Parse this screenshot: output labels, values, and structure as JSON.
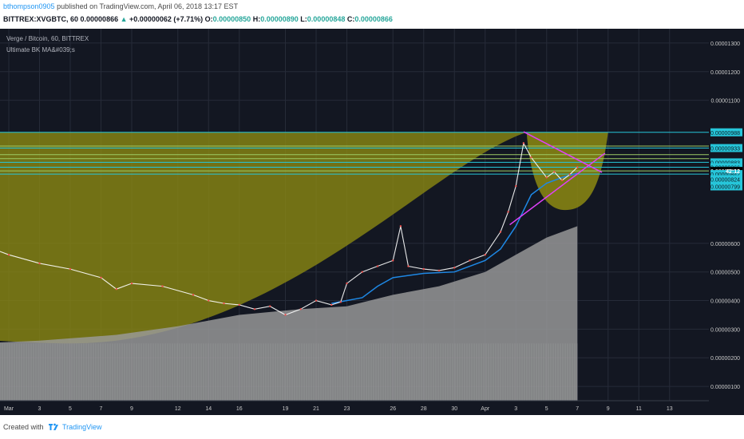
{
  "header": {
    "user": "bthompson0905",
    "published": "published on TradingView.com, April 06, 2018 13:17 EST",
    "symbol": "BITTREX:XVGBTC, 60",
    "last": "0.00000866",
    "change_arrow": "▲",
    "change": "+0.00000062 (+7.71%)",
    "o_label": "O:",
    "o_value": "0.00000850",
    "h_label": "H:",
    "h_value": "0.00000890",
    "l_label": "L:",
    "l_value": "0.00000848",
    "c_label": "C:",
    "c_value": "0.00000866"
  },
  "legend": {
    "title": "Verge / Bitcoin, 60, BITTREX",
    "indicator": "Ultimate BK MA&#039;s"
  },
  "footer": {
    "created_with": "Created with",
    "brand": "TradingView"
  },
  "colors": {
    "background": "#131722",
    "bowl_fill": "#8d8a12",
    "volume": "#9b9b9b",
    "cyan_line": "#26c6da",
    "green_line": "#9ccc65",
    "magenta_line": "#e040fb",
    "ma_line": "#1e88e5",
    "price_line": "#ffffff",
    "axis_text": "#c8c8c8"
  },
  "chart_data": {
    "type": "line",
    "title": "Verge / Bitcoin, 60, BITTREX",
    "xlabel": "",
    "ylabel": "",
    "ylim": [
      5e-07,
      1.35e-05
    ],
    "grid": true,
    "y_ticks": [
      {
        "value": 1.3e-05,
        "label": "0.00001300"
      },
      {
        "value": 1.2e-05,
        "label": "0.00001200"
      },
      {
        "value": 1.1e-05,
        "label": "0.00001100"
      },
      {
        "value": 6e-06,
        "label": "0.00000600"
      },
      {
        "value": 5e-06,
        "label": "0.00000500"
      },
      {
        "value": 4e-06,
        "label": "0.00000400"
      },
      {
        "value": 3e-06,
        "label": "0.00000300"
      },
      {
        "value": 2e-06,
        "label": "0.00000200"
      },
      {
        "value": 1e-06,
        "label": "0.00000100"
      }
    ],
    "x_ticks": [
      "Mar",
      "3",
      "5",
      "7",
      "9",
      "12",
      "14",
      "16",
      "19",
      "21",
      "23",
      "26",
      "28",
      "30",
      "Apr",
      "3",
      "5",
      "7",
      "9",
      "11",
      "13"
    ],
    "x_tick_days": [
      1,
      3,
      5,
      7,
      9,
      12,
      14,
      16,
      19,
      21,
      23,
      26,
      28,
      30,
      32,
      34,
      36,
      38,
      40,
      42,
      44
    ],
    "price_labels": [
      {
        "value": 9.88e-06,
        "label": "0.00000988",
        "style": "cyan"
      },
      {
        "value": 9.33e-06,
        "label": "0.00000933",
        "style": "cyan"
      },
      {
        "value": 8.83e-06,
        "label": "0.00000883",
        "style": "cyan"
      },
      {
        "value": 8.66e-06,
        "label": "0.00000866",
        "style": "cyan"
      },
      {
        "value": 8.53e-06,
        "label": "0.00000853",
        "style": "dark"
      },
      {
        "value": 8.42e-06,
        "label": "0.00000842",
        "style": "cyan"
      },
      {
        "value": 8.24e-06,
        "label": "0.00000824",
        "style": "cyan"
      },
      {
        "value": 7.99e-06,
        "label": "0.00000799",
        "style": "cyan"
      }
    ],
    "current_label": {
      "value": 8.53e-06,
      "label": "42:12"
    },
    "horizontal_levels": [
      {
        "value": 9.88e-06,
        "color": "cyan"
      },
      {
        "value": 9.4e-06,
        "color": "green"
      },
      {
        "value": 9.33e-06,
        "color": "cyan"
      },
      {
        "value": 9.1e-06,
        "color": "green"
      },
      {
        "value": 8.96e-06,
        "color": "green"
      },
      {
        "value": 8.83e-06,
        "color": "cyan"
      },
      {
        "value": 8.66e-06,
        "color": "cyan"
      },
      {
        "value": 8.53e-06,
        "color": "green"
      },
      {
        "value": 8.42e-06,
        "color": "cyan"
      }
    ],
    "series": [
      {
        "kind": "price",
        "x": [
          -1,
          1,
          3,
          5,
          7,
          8,
          9,
          11,
          13,
          14,
          15,
          16,
          17,
          18,
          19,
          20,
          21,
          22,
          22.6,
          23,
          24,
          25,
          26,
          26.5,
          27,
          28,
          29,
          30,
          31,
          32,
          33,
          33.5,
          34,
          34.5,
          35,
          36,
          36.5,
          37,
          37.5,
          38
        ],
        "values": [
          6e-06,
          5.6e-06,
          5.3e-06,
          5.1e-06,
          4.8e-06,
          4.4e-06,
          4.6e-06,
          4.5e-06,
          4.2e-06,
          4e-06,
          3.9e-06,
          3.85e-06,
          3.7e-06,
          3.8e-06,
          3.5e-06,
          3.7e-06,
          4e-06,
          3.85e-06,
          3.95e-06,
          4.6e-06,
          5e-06,
          5.2e-06,
          5.4e-06,
          6.6e-06,
          5.2e-06,
          5.1e-06,
          5.05e-06,
          5.15e-06,
          5.4e-06,
          5.6e-06,
          6.4e-06,
          7.1e-06,
          8e-06,
          9.5e-06,
          9e-06,
          8.3e-06,
          8.5e-06,
          8.2e-06,
          8.4e-06,
          8.66e-06
        ]
      },
      {
        "kind": "moving_average",
        "x": [
          22,
          24,
          25,
          26,
          28,
          30,
          31,
          32,
          33,
          34,
          35,
          36,
          37,
          38
        ],
        "values": [
          3.9e-06,
          4.1e-06,
          4.5e-06,
          4.8e-06,
          4.95e-06,
          5e-06,
          5.2e-06,
          5.4e-06,
          5.8e-06,
          6.6e-06,
          7.7e-06,
          8.1e-06,
          8.3e-06,
          8.45e-06
        ]
      },
      {
        "kind": "volume_envelope",
        "x": [
          -1,
          3,
          8,
          12,
          16,
          20,
          23,
          26,
          29,
          32,
          34,
          36,
          38
        ],
        "values": [
          2.5e-06,
          2.6e-06,
          2.8e-06,
          3.1e-06,
          3.5e-06,
          3.7e-06,
          3.8e-06,
          4.2e-06,
          4.5e-06,
          5e-06,
          5.6e-06,
          6.2e-06,
          6.6e-06
        ]
      }
    ],
    "shapes": {
      "big_bowl_rim": {
        "x1": -1,
        "x2": 34.7,
        "value": 9.88e-06
      },
      "big_bowl_low_x": 5,
      "big_bowl_low_value": 2.5e-06,
      "small_bowl": {
        "x1": 34.7,
        "x2": 40.0,
        "rim_value": 9.88e-06,
        "low_x": 37.2,
        "low_value": 8e-06
      },
      "triangle": {
        "apex_x": 38.6,
        "apex_value": 8.66e-06,
        "top_start_x": 34.5,
        "top_start_value": 9.9e-06,
        "top_end_x": 39.6,
        "top_end_value": 8.48e-06,
        "bottom_start_x": 33.6,
        "bottom_start_value": 6.65e-06,
        "bottom_end_x": 39.8,
        "bottom_end_value": 9.15e-06
      }
    }
  }
}
